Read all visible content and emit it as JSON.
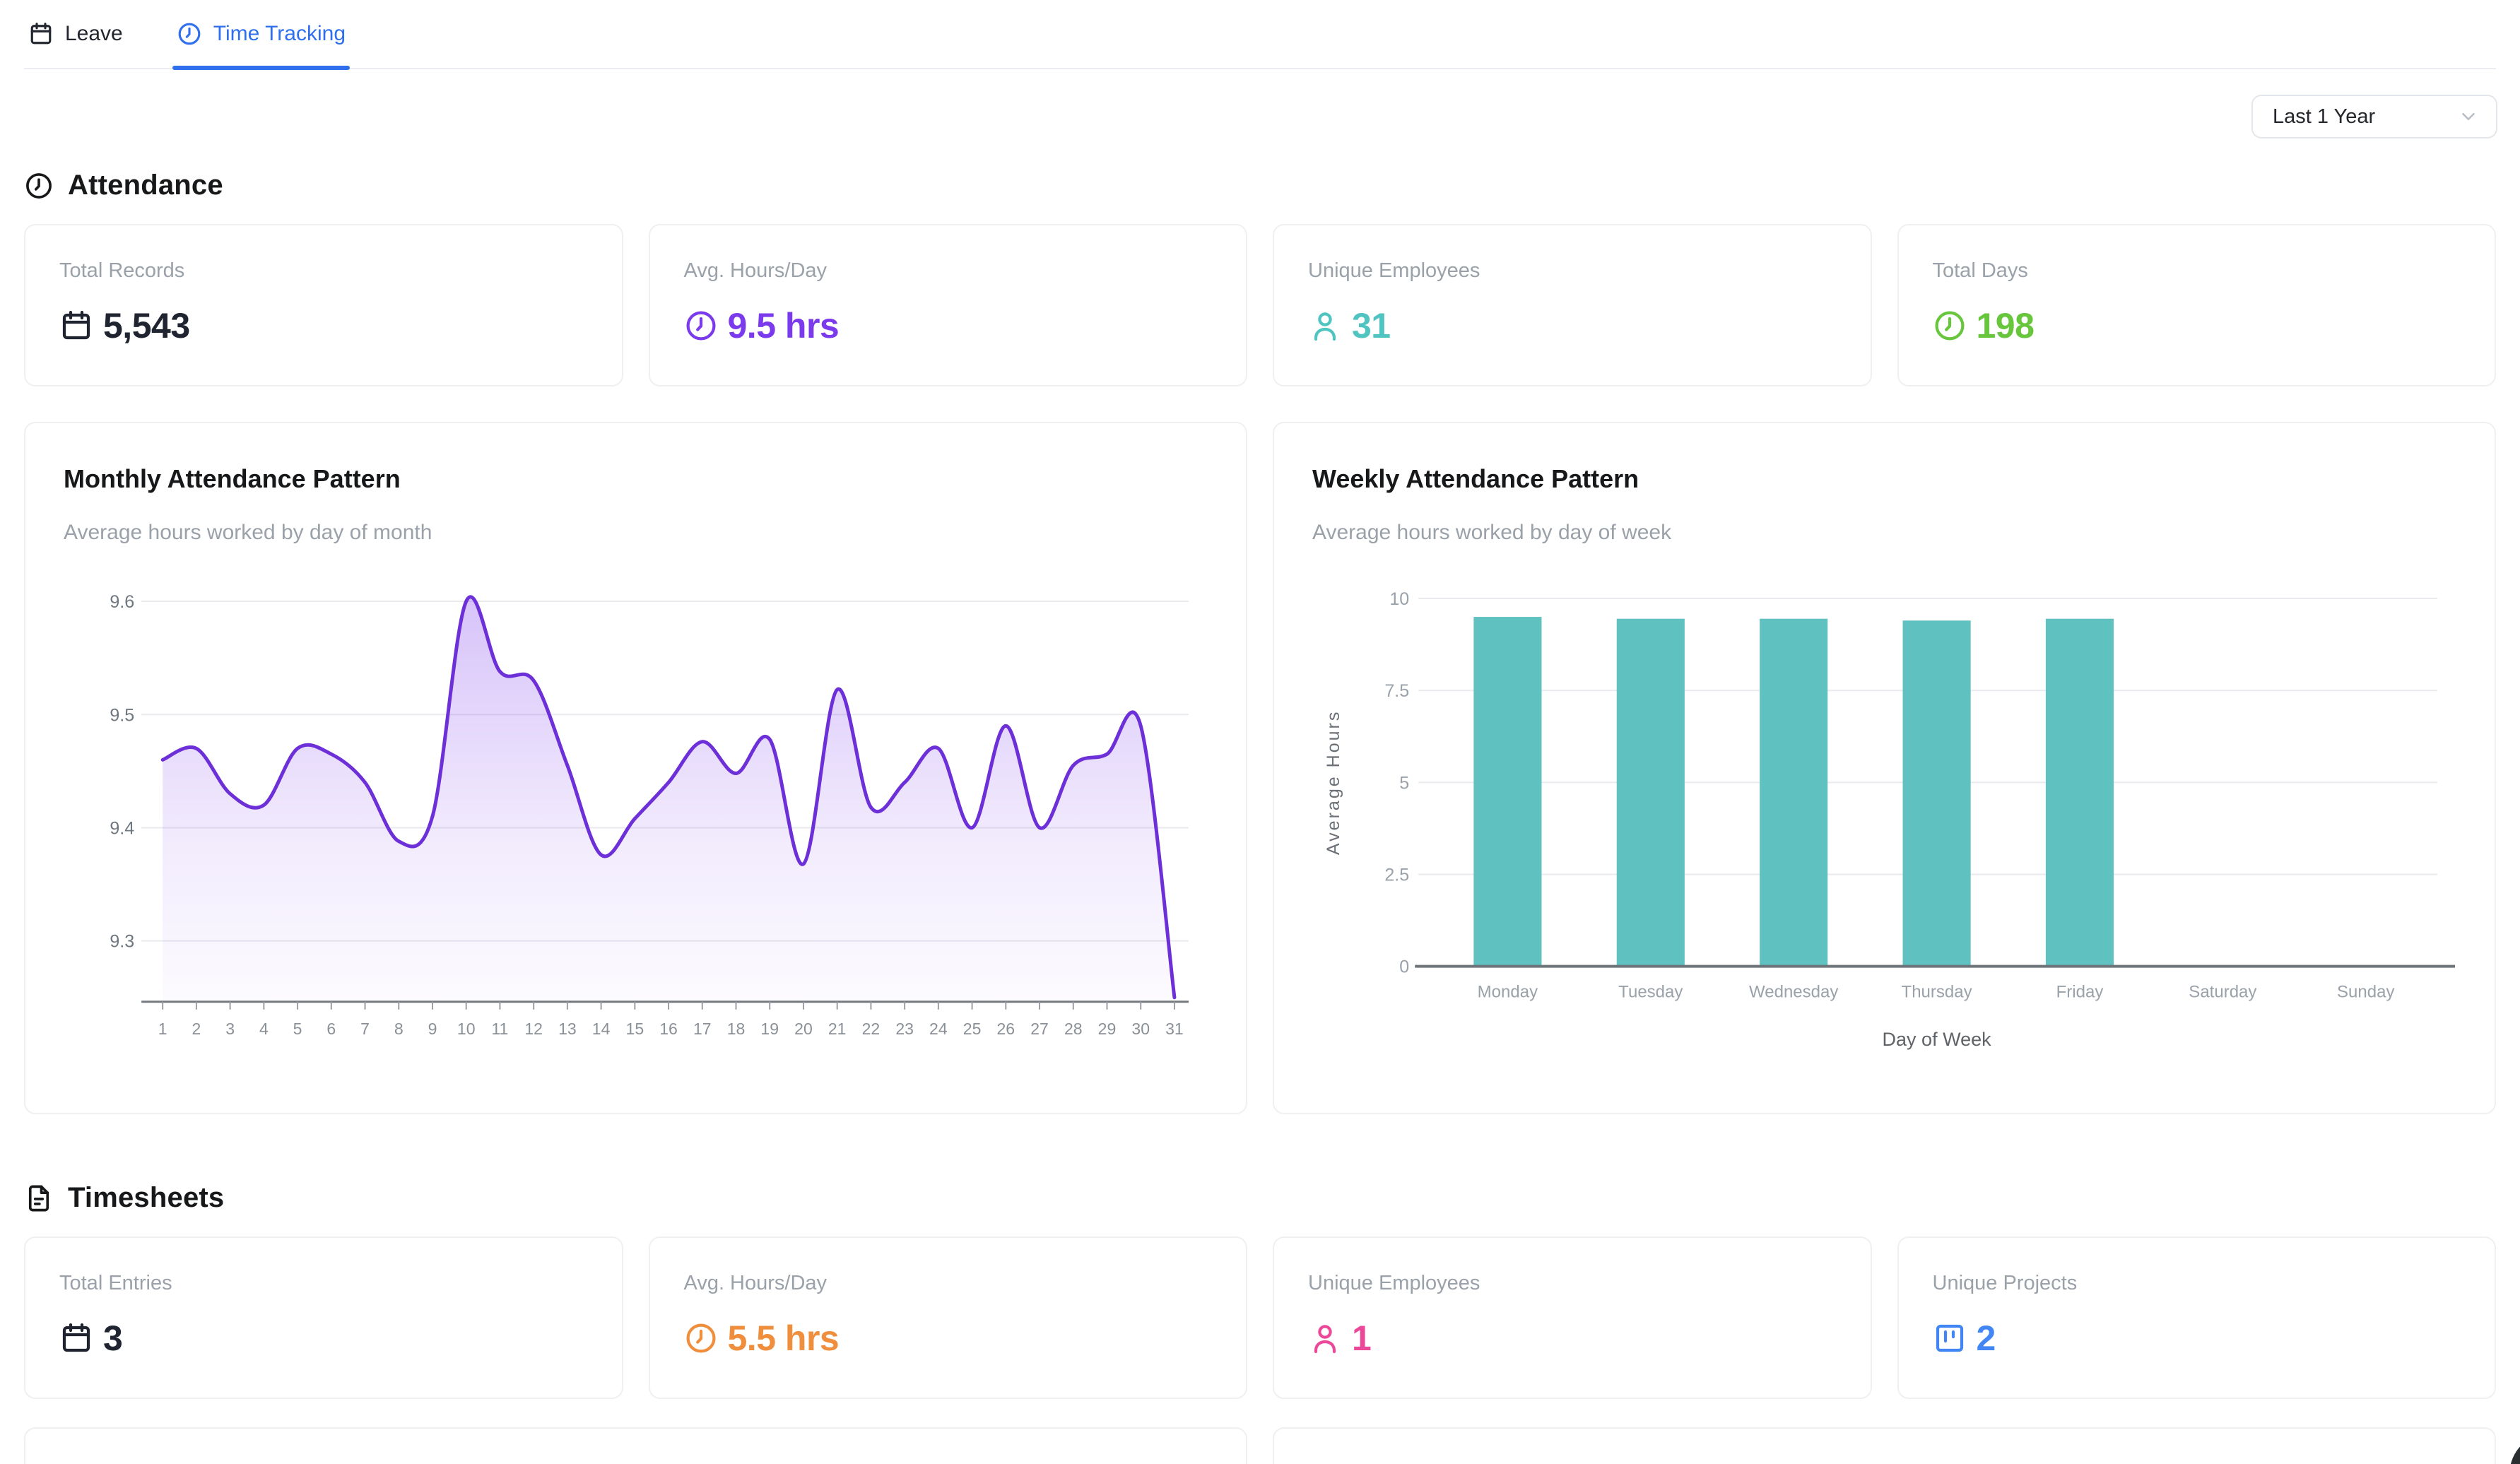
{
  "tabs": {
    "leave": "Leave",
    "time_tracking": "Time Tracking"
  },
  "filter": {
    "value": "Last 1 Year"
  },
  "attendance": {
    "title": "Attendance",
    "stats": [
      {
        "label": "Total Records",
        "value": "5,543",
        "icon": "calendar",
        "color": "#1f2430"
      },
      {
        "label": "Avg. Hours/Day",
        "value": "9.5 hrs",
        "icon": "clock",
        "color": "#7c3aed"
      },
      {
        "label": "Unique Employees",
        "value": "31",
        "icon": "user",
        "color": "#4fc4c0"
      },
      {
        "label": "Total Days",
        "value": "198",
        "icon": "clock",
        "color": "#68c63d"
      }
    ]
  },
  "timesheets": {
    "title": "Timesheets",
    "stats": [
      {
        "label": "Total Entries",
        "value": "3",
        "icon": "calendar",
        "color": "#1f2430"
      },
      {
        "label": "Avg. Hours/Day",
        "value": "5.5 hrs",
        "icon": "clock",
        "color": "#ef8e3c"
      },
      {
        "label": "Unique Employees",
        "value": "1",
        "icon": "user",
        "color": "#ec4899"
      },
      {
        "label": "Unique Projects",
        "value": "2",
        "icon": "kanban",
        "color": "#4285f4"
      }
    ]
  },
  "chart_data": [
    {
      "type": "area",
      "title": "Monthly Attendance Pattern",
      "subtitle": "Average hours worked by day of month",
      "x": [
        1,
        2,
        3,
        4,
        5,
        6,
        7,
        8,
        9,
        10,
        11,
        12,
        13,
        14,
        15,
        16,
        17,
        18,
        19,
        20,
        21,
        22,
        23,
        24,
        25,
        26,
        27,
        28,
        29,
        30,
        31
      ],
      "values": [
        9.46,
        9.47,
        9.43,
        9.42,
        9.47,
        9.465,
        9.44,
        9.388,
        9.41,
        9.6,
        9.538,
        9.53,
        9.455,
        9.376,
        9.408,
        9.44,
        9.476,
        9.448,
        9.478,
        9.368,
        9.522,
        9.418,
        9.44,
        9.47,
        9.4,
        9.49,
        9.4,
        9.455,
        9.465,
        9.49,
        9.25
      ],
      "ylim": [
        9.25,
        9.6
      ],
      "yticks": [
        9.3,
        9.4,
        9.5,
        9.6
      ],
      "line_color": "#6d30d8",
      "fill_color": "#7c3aed",
      "grid": true,
      "legend": "none"
    },
    {
      "type": "bar",
      "title": "Weekly Attendance Pattern",
      "subtitle": "Average hours worked by day of week",
      "categories": [
        "Monday",
        "Tuesday",
        "Wednesday",
        "Thursday",
        "Friday",
        "Saturday",
        "Sunday"
      ],
      "values": [
        9.5,
        9.45,
        9.45,
        9.4,
        9.45,
        0,
        0
      ],
      "ylim": [
        0,
        10
      ],
      "yticks": [
        0,
        2.5,
        5,
        7.5,
        10
      ],
      "xlabel": "Day of Week",
      "ylabel": "Average Hours",
      "bar_color": "#5fc2c0",
      "grid": true,
      "legend": "none"
    }
  ],
  "colors": {
    "tab_active": "#2f6fed",
    "border": "#eef0f2",
    "label_gray": "#9aa1a9",
    "heading": "#17181a"
  }
}
